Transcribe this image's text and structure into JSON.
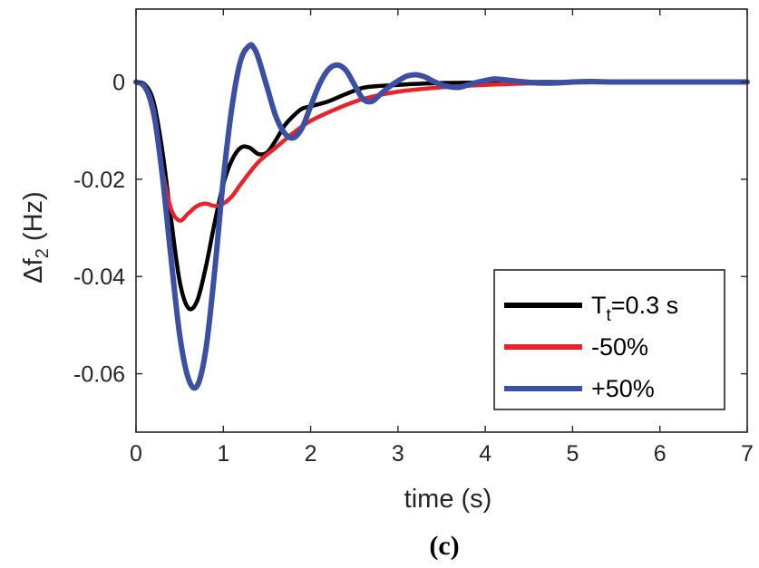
{
  "chart_data": {
    "type": "line",
    "title": "",
    "xlabel": "time (s)",
    "ylabel": {
      "prefix": "Δf",
      "sub": "2",
      "suffix": " (Hz)"
    },
    "xlim": [
      0,
      7
    ],
    "ylim": [
      -0.072,
      0.015
    ],
    "xticks": [
      0,
      1,
      2,
      3,
      4,
      5,
      6,
      7
    ],
    "xtick_labels": [
      "0",
      "1",
      "2",
      "3",
      "4",
      "5",
      "6",
      "7"
    ],
    "yticks": [
      0,
      -0.02,
      -0.04,
      -0.06
    ],
    "ytick_labels": [
      "0",
      "-0.02",
      "-0.04",
      "-0.06"
    ],
    "grid": false,
    "legend_position": "bottom-right",
    "caption": "(c)",
    "series": [
      {
        "name": "Tt=0.3 s",
        "legend_main": "T",
        "legend_sub": "t",
        "legend_rest": "=0.3 s",
        "color": "#000000",
        "x": [
          0,
          0.1,
          0.2,
          0.3,
          0.4,
          0.5,
          0.6,
          0.7,
          0.8,
          0.9,
          1.0,
          1.1,
          1.2,
          1.3,
          1.4,
          1.5,
          1.6,
          1.7,
          1.8,
          1.9,
          2.0,
          2.2,
          2.4,
          2.6,
          2.8,
          3.0,
          3.2,
          3.5,
          4.0,
          4.5,
          5,
          6,
          7
        ],
        "y": [
          0,
          -0.0005,
          -0.004,
          -0.014,
          -0.028,
          -0.041,
          -0.0465,
          -0.045,
          -0.038,
          -0.029,
          -0.021,
          -0.016,
          -0.0135,
          -0.0135,
          -0.0148,
          -0.0145,
          -0.012,
          -0.009,
          -0.007,
          -0.0055,
          -0.005,
          -0.004,
          -0.0025,
          -0.0012,
          -0.0008,
          -0.0006,
          -0.0004,
          -0.0002,
          -0.0001,
          0,
          0,
          0,
          0
        ]
      },
      {
        "name": "-50%",
        "color": "#e8242a",
        "x": [
          0,
          0.1,
          0.2,
          0.3,
          0.4,
          0.5,
          0.6,
          0.7,
          0.8,
          0.9,
          1.0,
          1.1,
          1.2,
          1.4,
          1.6,
          1.8,
          2.0,
          2.3,
          2.6,
          3.0,
          3.5,
          4.0,
          4.5,
          5,
          6,
          7
        ],
        "y": [
          0,
          -0.001,
          -0.007,
          -0.018,
          -0.026,
          -0.0285,
          -0.027,
          -0.0255,
          -0.025,
          -0.0255,
          -0.025,
          -0.0235,
          -0.021,
          -0.0165,
          -0.0135,
          -0.0105,
          -0.008,
          -0.0055,
          -0.0035,
          -0.002,
          -0.0011,
          -0.0006,
          -0.0003,
          -0.0001,
          0,
          0
        ]
      },
      {
        "name": "+50%",
        "color": "#3b4fa3",
        "x": [
          0,
          0.1,
          0.2,
          0.3,
          0.4,
          0.5,
          0.6,
          0.7,
          0.8,
          0.9,
          1.0,
          1.1,
          1.2,
          1.3,
          1.35,
          1.4,
          1.5,
          1.6,
          1.7,
          1.8,
          1.9,
          2.0,
          2.1,
          2.2,
          2.3,
          2.4,
          2.5,
          2.6,
          2.7,
          2.8,
          2.9,
          3.0,
          3.1,
          3.2,
          3.3,
          3.4,
          3.5,
          3.6,
          3.7,
          3.8,
          3.9,
          4.0,
          4.1,
          4.2,
          4.4,
          4.6,
          4.8,
          5.0,
          5.2,
          5.5,
          6,
          6.5,
          7
        ],
        "y": [
          0,
          -0.001,
          -0.006,
          -0.019,
          -0.036,
          -0.052,
          -0.061,
          -0.0625,
          -0.055,
          -0.039,
          -0.02,
          -0.005,
          0.0045,
          0.0075,
          0.007,
          0.005,
          -0.001,
          -0.007,
          -0.0105,
          -0.0115,
          -0.0095,
          -0.005,
          -0.0005,
          0.0025,
          0.0035,
          0.0025,
          -0.0005,
          -0.0035,
          -0.004,
          -0.0025,
          -0.001,
          0.0002,
          0.0012,
          0.0015,
          0.0011,
          0.0002,
          -0.0006,
          -0.001,
          -0.0011,
          -0.0006,
          -0.0001,
          0.0003,
          0.0006,
          0.0005,
          0.0001,
          -0.0002,
          -0.0002,
          0,
          0.0001,
          0,
          0,
          0,
          0
        ]
      }
    ]
  }
}
